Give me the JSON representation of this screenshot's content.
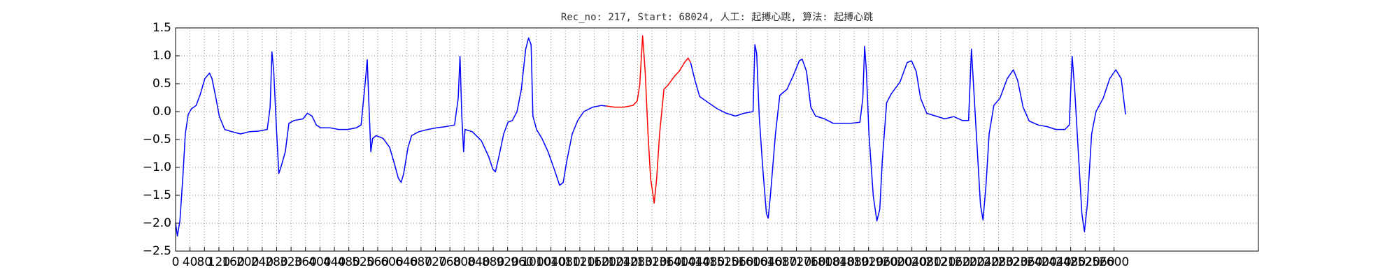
{
  "chart_data": {
    "type": "line",
    "title": "Rec_no: 217, Start: 68024, 人工: 起搏心跳, 算法: 起搏心跳",
    "xlim": [
      0,
      3000
    ],
    "ylim": [
      -2.5,
      1.5
    ],
    "grid": true,
    "yticks": [
      {
        "value": -2.5,
        "label": "−2.5"
      },
      {
        "value": -2.0,
        "label": "−2.0"
      },
      {
        "value": -1.5,
        "label": "−1.5"
      },
      {
        "value": -1.0,
        "label": "−1.0"
      },
      {
        "value": -0.5,
        "label": "−0.5"
      },
      {
        "value": 0,
        "label": "0.0"
      },
      0.5,
      {
        "value": 1,
        "label": "1.0"
      },
      1.5
    ],
    "xticks": [
      0,
      40,
      80,
      120,
      160,
      200,
      240,
      280,
      320,
      360,
      400,
      440,
      480,
      520,
      560,
      600,
      640,
      680,
      720,
      760,
      800,
      840,
      880,
      920,
      960,
      1000,
      1040,
      1080,
      1120,
      1160,
      1200,
      1240,
      1280,
      1320,
      1360,
      1400,
      1440,
      1480,
      1520,
      1560,
      1600,
      1640,
      1680,
      1720,
      1760,
      1800,
      1840,
      1880,
      1920,
      1960,
      2000,
      2040,
      2080,
      2120,
      2160,
      2200,
      2240,
      2280,
      2320,
      2360,
      2400,
      2440,
      2480,
      2520,
      2560,
      2600
    ],
    "series": [
      {
        "color": "#0000ff",
        "x": [
          0,
          5,
          12,
          20,
          27,
          35,
          44,
          57,
          69,
          81,
          94,
          101,
          111,
          121,
          136,
          156,
          180,
          205,
          230,
          254,
          262,
          267,
          272,
          279,
          286,
          294,
          304,
          314,
          328,
          353,
          365,
          378,
          390,
          402,
          427,
          452,
          477,
          501,
          514,
          526,
          531,
          536,
          541,
          546,
          556,
          575,
          593,
          607,
          617,
          625,
          632,
          644,
          654,
          674,
          699,
          723,
          748,
          773,
          783,
          788,
          793,
          798,
          802,
          822,
          847,
          867,
          879,
          886,
          896,
          909,
          921,
          933,
          946,
          958,
          970,
          978,
          985,
          990,
          1000,
          1015,
          1032,
          1049,
          1064,
          1074,
          1084,
          1099,
          1114,
          1131,
          1156,
          1180,
          1193
        ],
        "values": [
          -1.99,
          -2.23,
          -1.96,
          -1.19,
          -0.4,
          -0.05,
          0.05,
          0.11,
          0.32,
          0.59,
          0.69,
          0.59,
          0.27,
          -0.08,
          -0.32,
          -0.36,
          -0.4,
          -0.36,
          -0.35,
          -0.32,
          0.08,
          1.07,
          0.72,
          -0.24,
          -1.11,
          -0.95,
          -0.72,
          -0.21,
          -0.16,
          -0.13,
          -0.03,
          -0.08,
          -0.24,
          -0.29,
          -0.29,
          -0.32,
          -0.32,
          -0.29,
          -0.24,
          0.56,
          0.93,
          0.08,
          -0.72,
          -0.48,
          -0.43,
          -0.48,
          -0.64,
          -0.95,
          -1.19,
          -1.27,
          -1.11,
          -0.64,
          -0.43,
          -0.36,
          -0.32,
          -0.29,
          -0.27,
          -0.24,
          0.24,
          0.99,
          -0.08,
          -0.72,
          -0.32,
          -0.36,
          -0.52,
          -0.8,
          -1.03,
          -1.08,
          -0.8,
          -0.4,
          -0.19,
          -0.16,
          0.0,
          0.4,
          1.12,
          1.32,
          1.2,
          -0.08,
          -0.32,
          -0.48,
          -0.72,
          -1.03,
          -1.32,
          -1.27,
          -0.88,
          -0.4,
          -0.16,
          0.0,
          0.08,
          0.11,
          0.1
        ]
      },
      {
        "color": "#ff0000",
        "x": [
          1193,
          1217,
          1242,
          1267,
          1279,
          1286,
          1294,
          1301,
          1309,
          1316,
          1326,
          1333,
          1341,
          1353,
          1365,
          1383,
          1395,
          1410,
          1420,
          1427
        ],
        "values": [
          0.1,
          0.08,
          0.08,
          0.11,
          0.19,
          0.48,
          1.36,
          0.72,
          -0.4,
          -1.19,
          -1.64,
          -1.19,
          -0.4,
          0.4,
          0.48,
          0.64,
          0.72,
          0.88,
          0.96,
          0.88
        ]
      },
      {
        "color": "#0000ff",
        "x": [
          1427,
          1439,
          1452,
          1476,
          1501,
          1526,
          1551,
          1575,
          1600,
          1605,
          1610,
          1617,
          1627,
          1637,
          1642,
          1649,
          1662,
          1674,
          1694,
          1711,
          1728,
          1736,
          1748,
          1760,
          1773,
          1798,
          1822,
          1847,
          1872,
          1896,
          1904,
          1909,
          1914,
          1921,
          1933,
          1943,
          1951,
          1958,
          1970,
          1983,
          2007,
          2027,
          2039,
          2052,
          2064,
          2081,
          2106,
          2131,
          2156,
          2180,
          2197,
          2205,
          2210,
          2220,
          2230,
          2237,
          2245,
          2254,
          2267,
          2284,
          2304,
          2321,
          2333,
          2348,
          2365,
          2390,
          2415,
          2439,
          2464,
          2476,
          2484,
          2491,
          2501,
          2511,
          2518,
          2526,
          2538,
          2550,
          2570,
          2588,
          2605,
          2620,
          2632
        ],
        "values": [
          0.88,
          0.56,
          0.27,
          0.16,
          0.05,
          -0.03,
          -0.08,
          -0.03,
          0.0,
          1.2,
          1.04,
          -0.08,
          -1.03,
          -1.83,
          -1.91,
          -1.43,
          -0.4,
          0.29,
          0.4,
          0.64,
          0.91,
          0.94,
          0.72,
          0.08,
          -0.08,
          -0.13,
          -0.21,
          -0.21,
          -0.21,
          -0.19,
          0.24,
          1.17,
          0.72,
          -0.4,
          -1.51,
          -1.96,
          -1.75,
          -0.88,
          0.16,
          0.32,
          0.53,
          0.88,
          0.91,
          0.72,
          0.24,
          -0.03,
          -0.08,
          -0.13,
          -0.09,
          -0.16,
          -0.16,
          1.12,
          0.56,
          -0.56,
          -1.67,
          -1.94,
          -1.35,
          -0.4,
          0.11,
          0.24,
          0.59,
          0.75,
          0.56,
          0.08,
          -0.17,
          -0.24,
          -0.27,
          -0.32,
          -0.32,
          -0.24,
          0.99,
          0.4,
          -0.72,
          -1.83,
          -2.15,
          -1.67,
          -0.4,
          0.0,
          0.24,
          0.59,
          0.75,
          0.59,
          -0.05
        ]
      }
    ]
  }
}
